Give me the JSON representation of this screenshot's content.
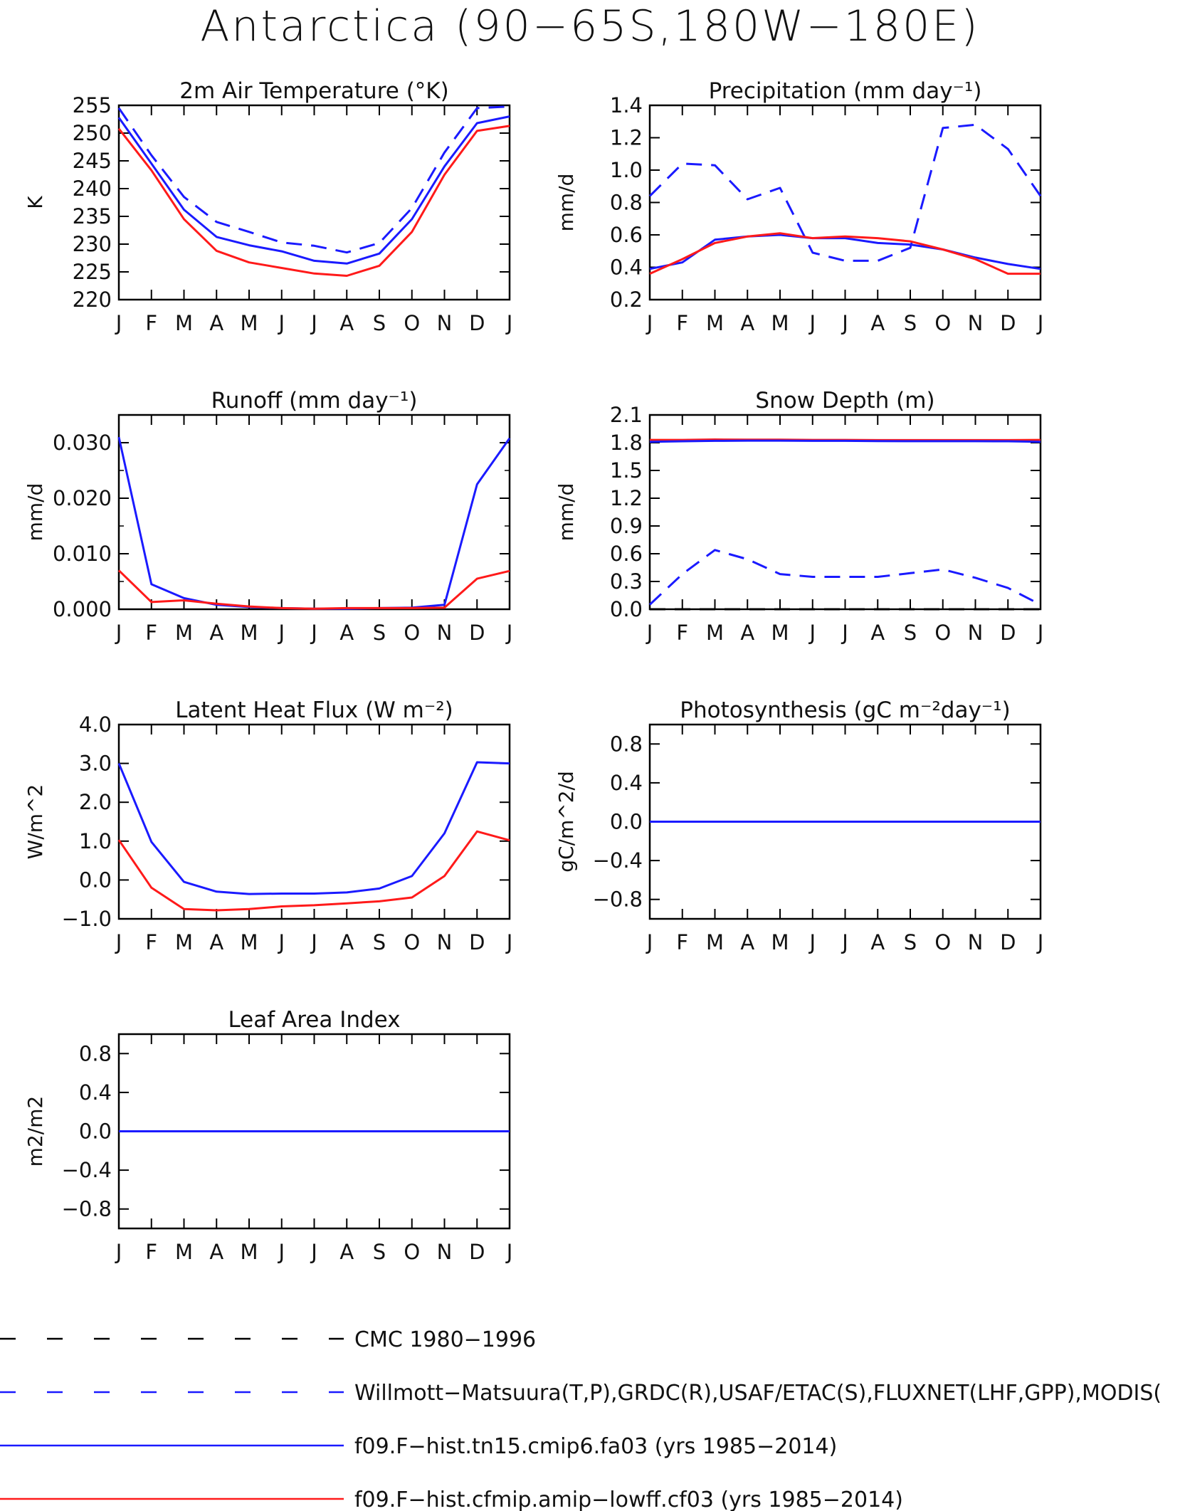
{
  "title": "Antarctica (90−65S,180W−180E)",
  "months": [
    "J",
    "F",
    "M",
    "A",
    "M",
    "J",
    "J",
    "A",
    "S",
    "O",
    "N",
    "D",
    "J"
  ],
  "colors": {
    "obs_cmc": "#000000",
    "obs": "#1a1aff",
    "model_a": "#1a1aff",
    "model_b": "#ff1a1a"
  },
  "legend": [
    {
      "key": "obs_cmc",
      "label": "CMC 1980−1996",
      "color": "#000000",
      "dashed": true
    },
    {
      "key": "obs",
      "label": "Willmott−Matsuura(T,P),GRDC(R),USAF/ETAC(S),FLUXNET(LHF,GPP),MODIS(",
      "color": "#1a1aff",
      "dashed": true
    },
    {
      "key": "model_a",
      "label": "f09.F−hist.tn15.cmip6.fa03 (yrs 1985−2014)",
      "color": "#1a1aff",
      "dashed": false
    },
    {
      "key": "model_b",
      "label": "f09.F−hist.cfmip.amip−lowff.cf03 (yrs 1985−2014)",
      "color": "#ff1a1a",
      "dashed": false
    }
  ],
  "chart_data": [
    {
      "type": "line",
      "title": "2m Air Temperature (°K)",
      "ylabel": "K",
      "ylim": [
        220,
        255
      ],
      "yticks": [
        "220",
        "225",
        "230",
        "235",
        "240",
        "245",
        "250",
        "255"
      ],
      "yminor": [],
      "categories": [
        "J",
        "F",
        "M",
        "A",
        "M",
        "J",
        "J",
        "A",
        "S",
        "O",
        "N",
        "D",
        "J"
      ],
      "series": [
        {
          "key": "obs",
          "values": [
            254.5,
            246,
            238.5,
            234,
            232.2,
            230.3,
            229.7,
            228.5,
            230.2,
            236.5,
            246.5,
            254.5,
            254.8
          ]
        },
        {
          "key": "model_a",
          "values": [
            252.8,
            244.5,
            236.2,
            231.3,
            229.8,
            228.7,
            227.0,
            226.5,
            228.3,
            234.5,
            244.0,
            251.8,
            253.0
          ]
        },
        {
          "key": "model_b",
          "values": [
            250.8,
            243.3,
            234.5,
            228.8,
            226.7,
            225.7,
            224.7,
            224.3,
            226.1,
            232.2,
            242.5,
            250.4,
            251.3
          ]
        }
      ]
    },
    {
      "type": "line",
      "title": "Precipitation (mm day⁻¹)",
      "ylabel": "mm/d",
      "ylim": [
        0.2,
        1.4
      ],
      "yticks": [
        "0.2",
        "0.4",
        "0.6",
        "0.8",
        "1.0",
        "1.2",
        "1.4"
      ],
      "yminor": [],
      "categories": [
        "J",
        "F",
        "M",
        "A",
        "M",
        "J",
        "J",
        "A",
        "S",
        "O",
        "N",
        "D",
        "J"
      ],
      "series": [
        {
          "key": "obs",
          "values": [
            0.84,
            1.04,
            1.03,
            0.82,
            0.89,
            0.49,
            0.44,
            0.44,
            0.52,
            1.26,
            1.28,
            1.13,
            0.84
          ]
        },
        {
          "key": "model_a",
          "values": [
            0.39,
            0.43,
            0.57,
            0.59,
            0.6,
            0.58,
            0.58,
            0.55,
            0.54,
            0.51,
            0.46,
            0.42,
            0.39
          ]
        },
        {
          "key": "model_b",
          "values": [
            0.36,
            0.45,
            0.55,
            0.59,
            0.61,
            0.58,
            0.59,
            0.58,
            0.56,
            0.51,
            0.45,
            0.36,
            0.36
          ]
        }
      ]
    },
    {
      "type": "line",
      "title": "Runoff (mm day⁻¹)",
      "ylabel": "mm/d",
      "ylim": [
        0,
        0.035
      ],
      "yticks": [
        "0.000",
        "0.010",
        "0.020",
        "0.030"
      ],
      "yminor": [
        0.005,
        0.015,
        0.025
      ],
      "categories": [
        "J",
        "F",
        "M",
        "A",
        "M",
        "J",
        "J",
        "A",
        "S",
        "O",
        "N",
        "D",
        "J"
      ],
      "series": [
        {
          "key": "model_a",
          "values": [
            0.031,
            0.0045,
            0.002,
            0.0008,
            0.0004,
            0.0002,
            0.0001,
            0.0001,
            0.0002,
            0.0003,
            0.0008,
            0.0225,
            0.0308
          ]
        },
        {
          "key": "model_b",
          "values": [
            0.007,
            0.0013,
            0.0016,
            0.001,
            0.0005,
            0.0002,
            0.0001,
            0.0002,
            0.0002,
            0.0002,
            0.0003,
            0.0055,
            0.0069
          ]
        }
      ]
    },
    {
      "type": "line",
      "title": "Snow Depth (m)",
      "ylabel": "mm/d",
      "ylim": [
        0,
        2.1
      ],
      "yticks": [
        "0.0",
        "0.3",
        "0.6",
        "0.9",
        "1.2",
        "1.5",
        "1.8",
        "2.1"
      ],
      "yminor": [],
      "categories": [
        "J",
        "F",
        "M",
        "A",
        "M",
        "J",
        "J",
        "A",
        "S",
        "O",
        "N",
        "D",
        "J"
      ],
      "series": [
        {
          "key": "obs_cmc",
          "values": [
            0,
            0,
            0,
            0,
            0,
            0,
            0,
            0,
            0,
            0,
            0,
            0,
            0
          ]
        },
        {
          "key": "obs",
          "values": [
            0.05,
            0.38,
            0.64,
            0.54,
            0.38,
            0.35,
            0.35,
            0.35,
            0.39,
            0.43,
            0.34,
            0.23,
            0.05
          ]
        },
        {
          "key": "model_b",
          "values": [
            1.83,
            1.83,
            1.835,
            1.832,
            1.832,
            1.83,
            1.83,
            1.828,
            1.828,
            1.828,
            1.828,
            1.828,
            1.83
          ]
        },
        {
          "key": "model_a",
          "values": [
            1.81,
            1.815,
            1.82,
            1.822,
            1.822,
            1.82,
            1.82,
            1.818,
            1.816,
            1.816,
            1.816,
            1.815,
            1.81
          ]
        }
      ]
    },
    {
      "type": "line",
      "title": "Latent Heat Flux (W m⁻²)",
      "ylabel": "W/m^2",
      "ylim": [
        -1,
        4
      ],
      "yticks": [
        "−1.0",
        "0.0",
        "1.0",
        "2.0",
        "3.0",
        "4.0"
      ],
      "yminor": [],
      "categories": [
        "J",
        "F",
        "M",
        "A",
        "M",
        "J",
        "J",
        "A",
        "S",
        "O",
        "N",
        "D",
        "J"
      ],
      "series": [
        {
          "key": "model_a",
          "values": [
            3.0,
            0.98,
            -0.05,
            -0.3,
            -0.36,
            -0.35,
            -0.35,
            -0.32,
            -0.22,
            0.1,
            1.2,
            3.03,
            3.0
          ]
        },
        {
          "key": "model_b",
          "values": [
            1.03,
            -0.2,
            -0.75,
            -0.78,
            -0.75,
            -0.68,
            -0.65,
            -0.6,
            -0.55,
            -0.45,
            0.1,
            1.25,
            1.02
          ]
        }
      ]
    },
    {
      "type": "line",
      "title": "Photosynthesis (gC m⁻²day⁻¹)",
      "ylabel": "gC/m^2/d",
      "ylim": [
        -1,
        1
      ],
      "yticks": [
        "−0.8",
        "−0.4",
        "0.0",
        "0.4",
        "0.8"
      ],
      "yminor": [],
      "categories": [
        "J",
        "F",
        "M",
        "A",
        "M",
        "J",
        "J",
        "A",
        "S",
        "O",
        "N",
        "D",
        "J"
      ],
      "series": [
        {
          "key": "model_b",
          "values": [
            0,
            0,
            0,
            0,
            0,
            0,
            0,
            0,
            0,
            0,
            0,
            0,
            0
          ]
        },
        {
          "key": "model_a",
          "values": [
            0,
            0,
            0,
            0,
            0,
            0,
            0,
            0,
            0,
            0,
            0,
            0,
            0
          ]
        }
      ]
    },
    {
      "type": "line",
      "title": "Leaf Area Index",
      "ylabel": "m2/m2",
      "ylim": [
        -1,
        1
      ],
      "yticks": [
        "−0.8",
        "−0.4",
        "0.0",
        "0.4",
        "0.8"
      ],
      "yminor": [],
      "categories": [
        "J",
        "F",
        "M",
        "A",
        "M",
        "J",
        "J",
        "A",
        "S",
        "O",
        "N",
        "D",
        "J"
      ],
      "series": [
        {
          "key": "model_b",
          "values": [
            0,
            0,
            0,
            0,
            0,
            0,
            0,
            0,
            0,
            0,
            0,
            0,
            0
          ]
        },
        {
          "key": "model_a",
          "values": [
            0,
            0,
            0,
            0,
            0,
            0,
            0,
            0,
            0,
            0,
            0,
            0,
            0
          ]
        }
      ]
    }
  ]
}
